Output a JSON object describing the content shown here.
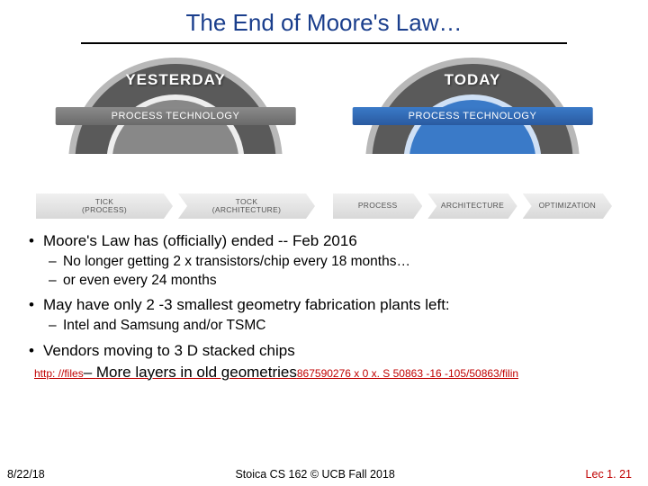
{
  "title": "The End of Moore's Law…",
  "diagram": {
    "left": {
      "header": "YESTERDAY",
      "subheader": "PROCESS TECHNOLOGY",
      "ribbons": [
        "TICK\n(PROCESS)",
        "TOCK\n(ARCHITECTURE)"
      ],
      "arc_color_dark": "#5a5a5a",
      "arc_color_light": "#b8b8b8"
    },
    "right": {
      "header": "TODAY",
      "subheader": "PROCESS TECHNOLOGY",
      "ribbons": [
        "PROCESS",
        "ARCHITECTURE",
        "OPTIMIZATION"
      ],
      "arc_color_dark": "#2a5aa0",
      "arc_color_light": "#b8b8b8"
    }
  },
  "bullets": {
    "b1_1": "Moore's Law has (officially) ended -- Feb 2016",
    "b2_1": "No longer getting 2 x transistors/chip every 18 months…",
    "b2_2": "or even every 24 months",
    "b1_2": "May have only 2 -3 smallest geometry fabrication plants left:",
    "b2_3": " Intel and Samsung and/or TSMC",
    "b1_3": "Vendors moving to 3 D stacked chips",
    "b2_overlay": "More layers in old geometries"
  },
  "link": "http: //files. shareholder. com/downloads/INTC/867590276 x 0 x. S 50863 -16 -105/50863/filin",
  "footer": {
    "left": "8/22/18",
    "center": "Stoica CS 162 © UCB Fall 2018",
    "right": "Lec 1. 21"
  },
  "colors": {
    "title": "#1a3e8c",
    "link": "#c00000",
    "lec": "#c00000"
  }
}
